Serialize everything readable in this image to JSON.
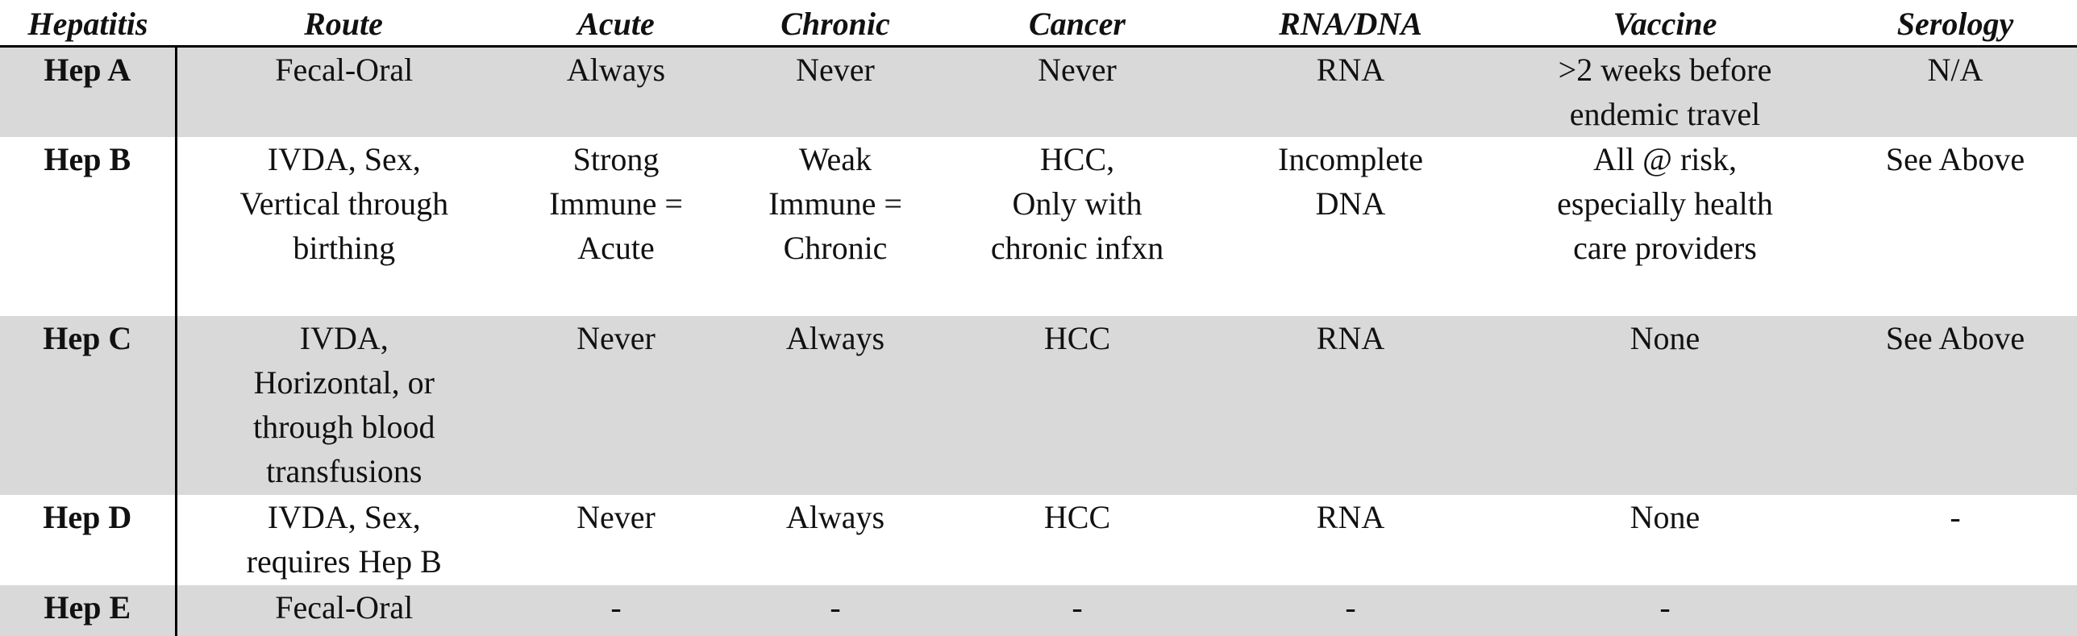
{
  "header": {
    "hepatitis": "Hepatitis",
    "route": "Route",
    "acute": "Acute",
    "chronic": "Chronic",
    "cancer": "Cancer",
    "rna_dna": "RNA/DNA",
    "vaccine": "Vaccine",
    "serology": "Serology"
  },
  "rows": [
    {
      "name": "Hep A",
      "route": "Fecal-Oral",
      "acute": "Always",
      "chronic": "Never",
      "cancer": "Never",
      "rna_dna": "RNA",
      "vaccine": ">2 weeks before\nendemic travel",
      "serology": "N/A"
    },
    {
      "name": "Hep B",
      "route": "IVDA, Sex,\nVertical through\nbirthing",
      "acute": "Strong\nImmune =\nAcute",
      "chronic": "Weak\nImmune =\nChronic",
      "cancer": "HCC,\nOnly with\nchronic infxn",
      "rna_dna": "Incomplete\nDNA",
      "vaccine": "All @ risk,\nespecially health\ncare providers",
      "serology": "See Above"
    },
    {
      "name": "Hep C",
      "route": "IVDA,\nHorizontal, or\nthrough blood\ntransfusions",
      "acute": "Never",
      "chronic": "Always",
      "cancer": "HCC",
      "rna_dna": "RNA",
      "vaccine": "None",
      "serology": "See Above"
    },
    {
      "name": "Hep D",
      "route": "IVDA, Sex,\nrequires Hep B",
      "acute": "Never",
      "chronic": "Always",
      "cancer": "HCC",
      "rna_dna": "RNA",
      "vaccine": "None",
      "serology": "-"
    },
    {
      "name": "Hep E",
      "route": "Fecal-Oral",
      "acute": "-",
      "chronic": "-",
      "cancer": "-",
      "rna_dna": "-",
      "vaccine": "-",
      "serology": ""
    }
  ]
}
